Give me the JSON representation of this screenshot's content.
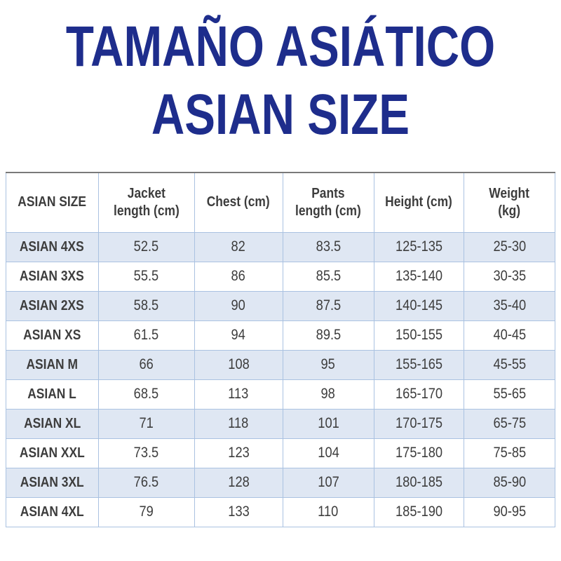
{
  "colors": {
    "title_blue": "#1e2d8c",
    "table_border": "#aac2e1",
    "table_top_border": "#7a7a7a",
    "shaded_row_bg": "#dfe7f3",
    "text_dark": "#3d3d3d"
  },
  "title": {
    "line1": "TAMAÑO ASIÁTICO",
    "line2": "ASIAN SIZE"
  },
  "table": {
    "headers": [
      "ASIAN SIZE",
      "Jacket\nlength (cm)",
      "Chest (cm)",
      "Pants\nlength (cm)",
      "Height (cm)",
      "Weight\n(kg)"
    ],
    "rows": [
      [
        "ASIAN 4XS",
        "52.5",
        "82",
        "83.5",
        "125-135",
        "25-30"
      ],
      [
        "ASIAN 3XS",
        "55.5",
        "86",
        "85.5",
        "135-140",
        "30-35"
      ],
      [
        "ASIAN 2XS",
        "58.5",
        "90",
        "87.5",
        "140-145",
        "35-40"
      ],
      [
        "ASIAN XS",
        "61.5",
        "94",
        "89.5",
        "150-155",
        "40-45"
      ],
      [
        "ASIAN M",
        "66",
        "108",
        "95",
        "155-165",
        "45-55"
      ],
      [
        "ASIAN L",
        "68.5",
        "113",
        "98",
        "165-170",
        "55-65"
      ],
      [
        "ASIAN XL",
        "71",
        "118",
        "101",
        "170-175",
        "65-75"
      ],
      [
        "ASIAN XXL",
        "73.5",
        "123",
        "104",
        "175-180",
        "75-85"
      ],
      [
        "ASIAN 3XL",
        "76.5",
        "128",
        "107",
        "180-185",
        "85-90"
      ],
      [
        "ASIAN 4XL",
        "79",
        "133",
        "110",
        "185-190",
        "90-95"
      ]
    ]
  }
}
